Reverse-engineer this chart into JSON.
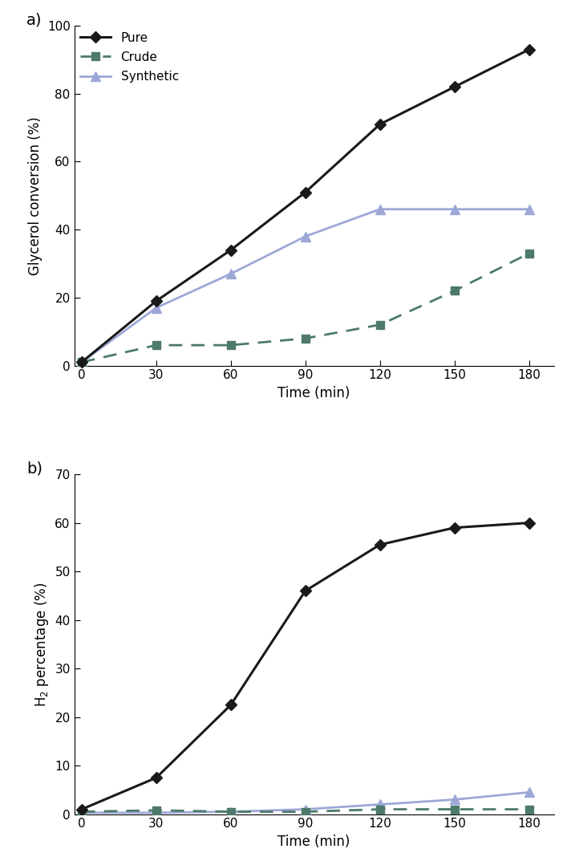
{
  "time": [
    0,
    30,
    60,
    90,
    120,
    150,
    180
  ],
  "panel_a": {
    "pure": [
      1,
      19,
      34,
      51,
      71,
      82,
      93
    ],
    "crude": [
      1,
      6,
      6,
      8,
      12,
      22,
      33
    ],
    "synthetic": [
      1,
      17,
      27,
      38,
      46,
      46,
      46
    ],
    "ylabel": "Glycerol conversion (%)",
    "ylim": [
      0,
      100
    ],
    "yticks": [
      0,
      20,
      40,
      60,
      80,
      100
    ]
  },
  "panel_b": {
    "pure": [
      1,
      7.5,
      22.5,
      46,
      55.5,
      59,
      60
    ],
    "crude": [
      0.5,
      0.8,
      0.5,
      0.5,
      1.0,
      1.0,
      1.0
    ],
    "synthetic": [
      0.3,
      0.3,
      0.5,
      1.0,
      2.0,
      3.0,
      4.5
    ],
    "ylabel": "H$_2$ percentage (%)",
    "ylim": [
      0,
      70
    ],
    "yticks": [
      0,
      10,
      20,
      30,
      40,
      50,
      60,
      70
    ]
  },
  "xlabel": "Time (min)",
  "xticks": [
    0,
    30,
    60,
    90,
    120,
    150,
    180
  ],
  "xlim": [
    -3,
    190
  ],
  "pure_color": "#1a1a1a",
  "crude_color": "#4d7a6b",
  "synthetic_color": "#9da8d8",
  "label_pure": "Pure",
  "label_crude": "Crude",
  "label_synthetic": "Synthetic",
  "panel_a_label": "a)",
  "panel_b_label": "b)"
}
